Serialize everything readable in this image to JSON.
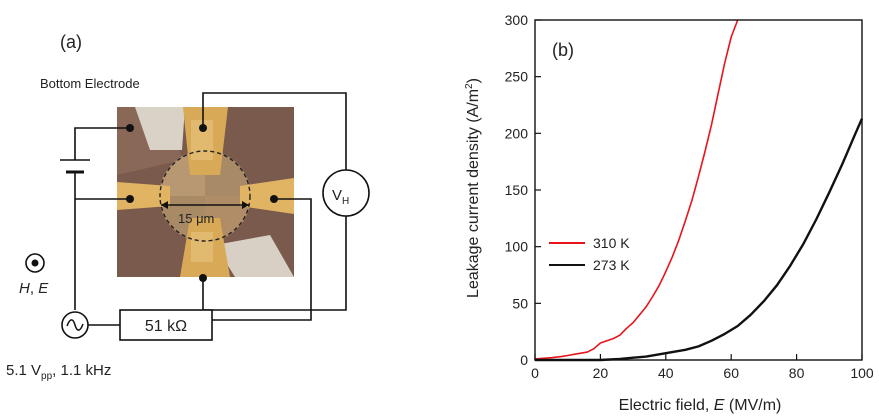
{
  "panel_a": {
    "label": "(a)",
    "bottom_electrode": "Bottom Electrode",
    "sample_size": "15 μm",
    "vh_symbol": "V",
    "vh_subscript": "H",
    "resistor": "51 kΩ",
    "field_h": "H",
    "field_sep": ", ",
    "field_e": "E",
    "source_voltage": "5.1 V",
    "source_voltage_sub": "pp",
    "source_freq": ", 1.1 kHz"
  },
  "chart_data": {
    "type": "line",
    "panel_label": "(b)",
    "xlabel_prefix": "Electric field, ",
    "xlabel_var": "E",
    "xlabel_unit": " (MV/m)",
    "ylabel": "Leakage current density (A/m",
    "ylabel_sup": "2",
    "ylabel_end": ")",
    "xlim": [
      0,
      100
    ],
    "ylim": [
      0,
      300
    ],
    "xticks": [
      0,
      20,
      40,
      60,
      80,
      100
    ],
    "yticks": [
      0,
      50,
      100,
      150,
      200,
      250,
      300
    ],
    "grid": false,
    "legend_position": "middle-left",
    "series": [
      {
        "name": "310 K",
        "color": "#e8141c",
        "x": [
          0,
          5,
          8,
          10,
          12,
          14,
          16,
          18,
          20,
          22,
          24,
          26,
          28,
          30,
          32,
          34,
          36,
          38,
          40,
          42,
          44,
          46,
          48,
          50,
          52,
          54,
          56,
          58,
          60,
          62
        ],
        "y": [
          1,
          2,
          3,
          4,
          5,
          6,
          7,
          10,
          15,
          17,
          19,
          22,
          28,
          33,
          40,
          47,
          56,
          66,
          78,
          91,
          106,
          123,
          141,
          162,
          184,
          208,
          235,
          262,
          285,
          300
        ]
      },
      {
        "name": "273 K",
        "color": "#111111",
        "x": [
          0,
          10,
          20,
          26,
          30,
          34,
          38,
          42,
          46,
          50,
          54,
          58,
          62,
          66,
          70,
          74,
          78,
          82,
          86,
          90,
          94,
          98,
          100
        ],
        "y": [
          0,
          0,
          0,
          1,
          2,
          3,
          5,
          7,
          9,
          12,
          17,
          23,
          30,
          40,
          52,
          66,
          83,
          102,
          124,
          148,
          173,
          200,
          213
        ]
      }
    ]
  }
}
